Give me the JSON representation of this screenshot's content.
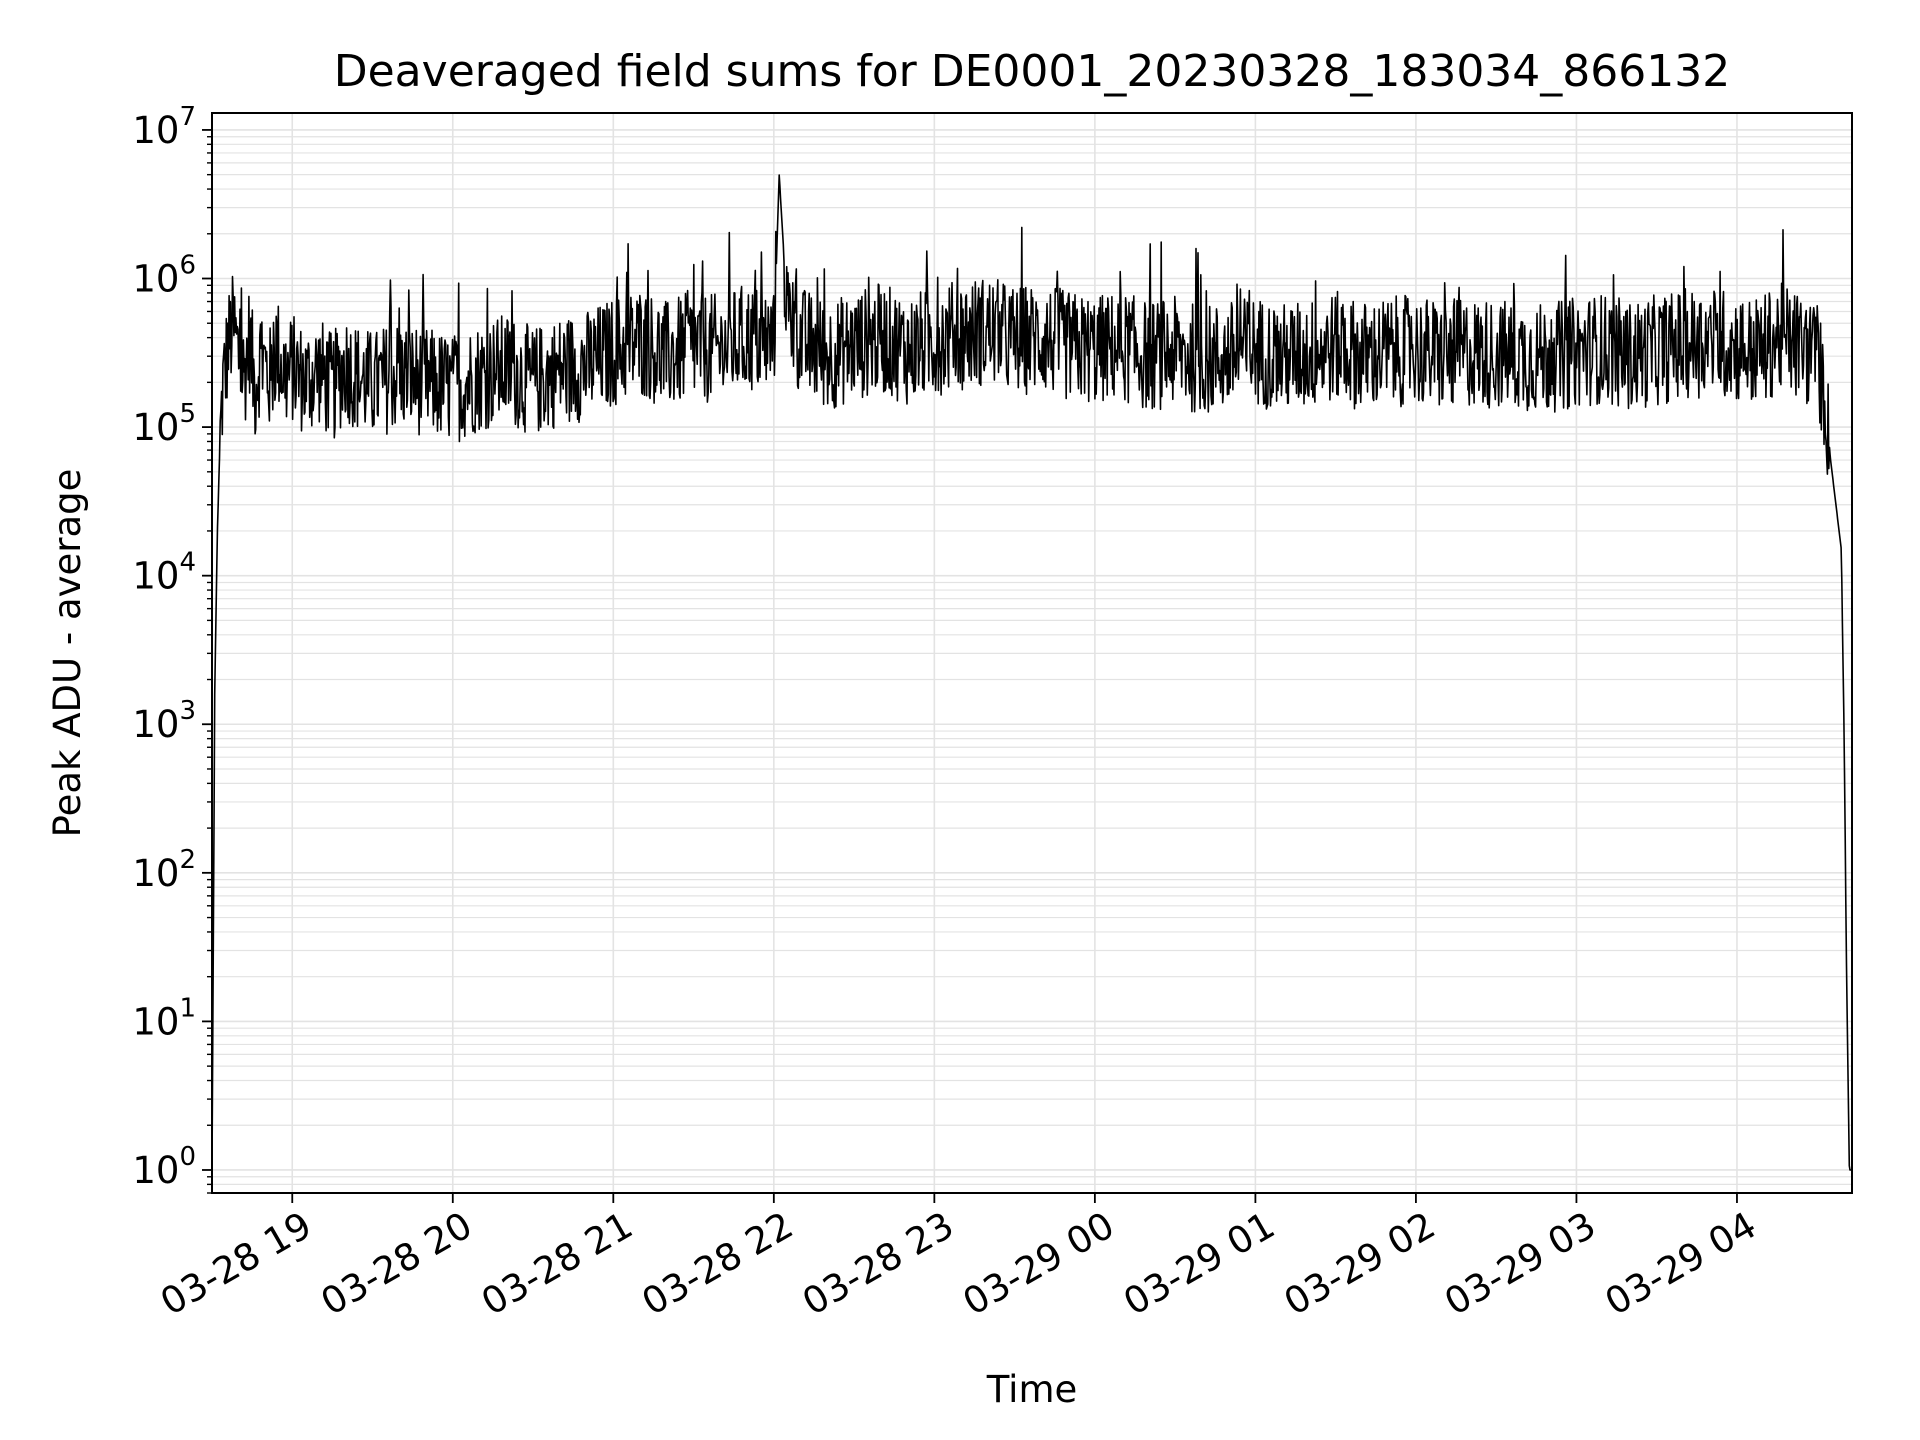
{
  "chart_data": {
    "type": "line",
    "title": "Deaveraged field sums for DE0001_20230328_183034_866132",
    "xlabel": "Time",
    "ylabel": "Peak ADU - average",
    "y_scale": "log",
    "ylim": [
      0.7,
      13000000
    ],
    "xlim": [
      "2023-03-28 18:30",
      "2023-03-29 04:43"
    ],
    "grid": true,
    "grid_minor": true,
    "line_color": "#000000",
    "grid_color": "#e3e3e3",
    "x_ticks": [
      {
        "label": "03-28 19",
        "value": "2023-03-28 19:00"
      },
      {
        "label": "03-28 20",
        "value": "2023-03-28 20:00"
      },
      {
        "label": "03-28 21",
        "value": "2023-03-28 21:00"
      },
      {
        "label": "03-28 22",
        "value": "2023-03-28 22:00"
      },
      {
        "label": "03-28 23",
        "value": "2023-03-28 23:00"
      },
      {
        "label": "03-29 00",
        "value": "2023-03-29 00:00"
      },
      {
        "label": "03-29 01",
        "value": "2023-03-29 01:00"
      },
      {
        "label": "03-29 02",
        "value": "2023-03-29 02:00"
      },
      {
        "label": "03-29 03",
        "value": "2023-03-29 03:00"
      },
      {
        "label": "03-29 04",
        "value": "2023-03-29 04:00"
      }
    ],
    "y_ticks": [
      {
        "base": "10",
        "exp": "0",
        "value": 1
      },
      {
        "base": "10",
        "exp": "1",
        "value": 10
      },
      {
        "base": "10",
        "exp": "2",
        "value": 100
      },
      {
        "base": "10",
        "exp": "3",
        "value": 1000
      },
      {
        "base": "10",
        "exp": "4",
        "value": 10000
      },
      {
        "base": "10",
        "exp": "5",
        "value": 100000
      },
      {
        "base": "10",
        "exp": "6",
        "value": 1000000
      },
      {
        "base": "10",
        "exp": "7",
        "value": 10000000
      }
    ],
    "series": [
      {
        "x": [
          "2023-03-28 18:30",
          "2023-03-28 18:31",
          "2023-03-28 18:32",
          "2023-03-28 18:33",
          "2023-03-28 18:34",
          "2023-03-28 18:36",
          "2023-03-28 18:38",
          "2023-03-28 18:40",
          "2023-03-28 18:42",
          "2023-03-28 18:44",
          "2023-03-28 18:46",
          "2023-03-28 18:48",
          "2023-03-28 18:50",
          "2023-03-28 18:52",
          "2023-03-28 18:54",
          "2023-03-28 18:56",
          "2023-03-28 18:58",
          "2023-03-28 19:00",
          "2023-03-28 19:05",
          "2023-03-28 19:10",
          "2023-03-28 19:15",
          "2023-03-28 19:20",
          "2023-03-28 19:25",
          "2023-03-28 19:30",
          "2023-03-28 19:40",
          "2023-03-28 19:50",
          "2023-03-28 20:00",
          "2023-03-28 20:10",
          "2023-03-28 20:20",
          "2023-03-28 20:30",
          "2023-03-28 20:40",
          "2023-03-28 20:50",
          "2023-03-28 21:00",
          "2023-03-28 21:10",
          "2023-03-28 21:20",
          "2023-03-28 21:30",
          "2023-03-28 21:40",
          "2023-03-28 21:50",
          "2023-03-28 22:00",
          "2023-03-28 22:02",
          "2023-03-28 22:05",
          "2023-03-28 22:10",
          "2023-03-28 22:20",
          "2023-03-28 22:30",
          "2023-03-28 22:40",
          "2023-03-28 22:50",
          "2023-03-28 23:00",
          "2023-03-28 23:10",
          "2023-03-28 23:20",
          "2023-03-28 23:30",
          "2023-03-28 23:40",
          "2023-03-28 23:50",
          "2023-03-29 00:00",
          "2023-03-29 00:10",
          "2023-03-29 00:20",
          "2023-03-29 00:30",
          "2023-03-29 00:40",
          "2023-03-29 00:50",
          "2023-03-29 01:00",
          "2023-03-29 01:10",
          "2023-03-29 01:20",
          "2023-03-29 01:30",
          "2023-03-29 01:40",
          "2023-03-29 01:50",
          "2023-03-29 02:00",
          "2023-03-29 02:10",
          "2023-03-29 02:20",
          "2023-03-29 02:30",
          "2023-03-29 02:40",
          "2023-03-29 02:50",
          "2023-03-29 03:00",
          "2023-03-29 03:10",
          "2023-03-29 03:20",
          "2023-03-29 03:30",
          "2023-03-29 03:40",
          "2023-03-29 03:50",
          "2023-03-29 04:00",
          "2023-03-29 04:05",
          "2023-03-29 04:10",
          "2023-03-29 04:15",
          "2023-03-29 04:20",
          "2023-03-29 04:25",
          "2023-03-29 04:30",
          "2023-03-29 04:33",
          "2023-03-29 04:35",
          "2023-03-29 04:37",
          "2023-03-29 04:39",
          "2023-03-29 04:40",
          "2023-03-29 04:41",
          "2023-03-29 04:42",
          "2023-03-29 04:43"
        ],
        "y": [
          1,
          1500,
          20000,
          80000,
          180000,
          350000,
          480000,
          300000,
          220000,
          400000,
          180000,
          300000,
          250000,
          200000,
          350000,
          260000,
          220000,
          250000,
          200000,
          240000,
          180000,
          260000,
          210000,
          190000,
          230000,
          200000,
          180000,
          220000,
          250000,
          200000,
          240000,
          260000,
          320000,
          380000,
          300000,
          350000,
          330000,
          400000,
          360000,
          5000000,
          600000,
          380000,
          300000,
          350000,
          400000,
          330000,
          380000,
          420000,
          450000,
          380000,
          400000,
          350000,
          330000,
          350000,
          300000,
          320000,
          280000,
          300000,
          330000,
          290000,
          310000,
          350000,
          300000,
          320000,
          330000,
          300000,
          320000,
          310000,
          300000,
          290000,
          320000,
          340000,
          300000,
          330000,
          360000,
          380000,
          350000,
          320000,
          330000,
          400000,
          380000,
          330000,
          300000,
          150000,
          60000,
          30000,
          15000,
          1000,
          20,
          1,
          1
        ]
      }
    ]
  }
}
